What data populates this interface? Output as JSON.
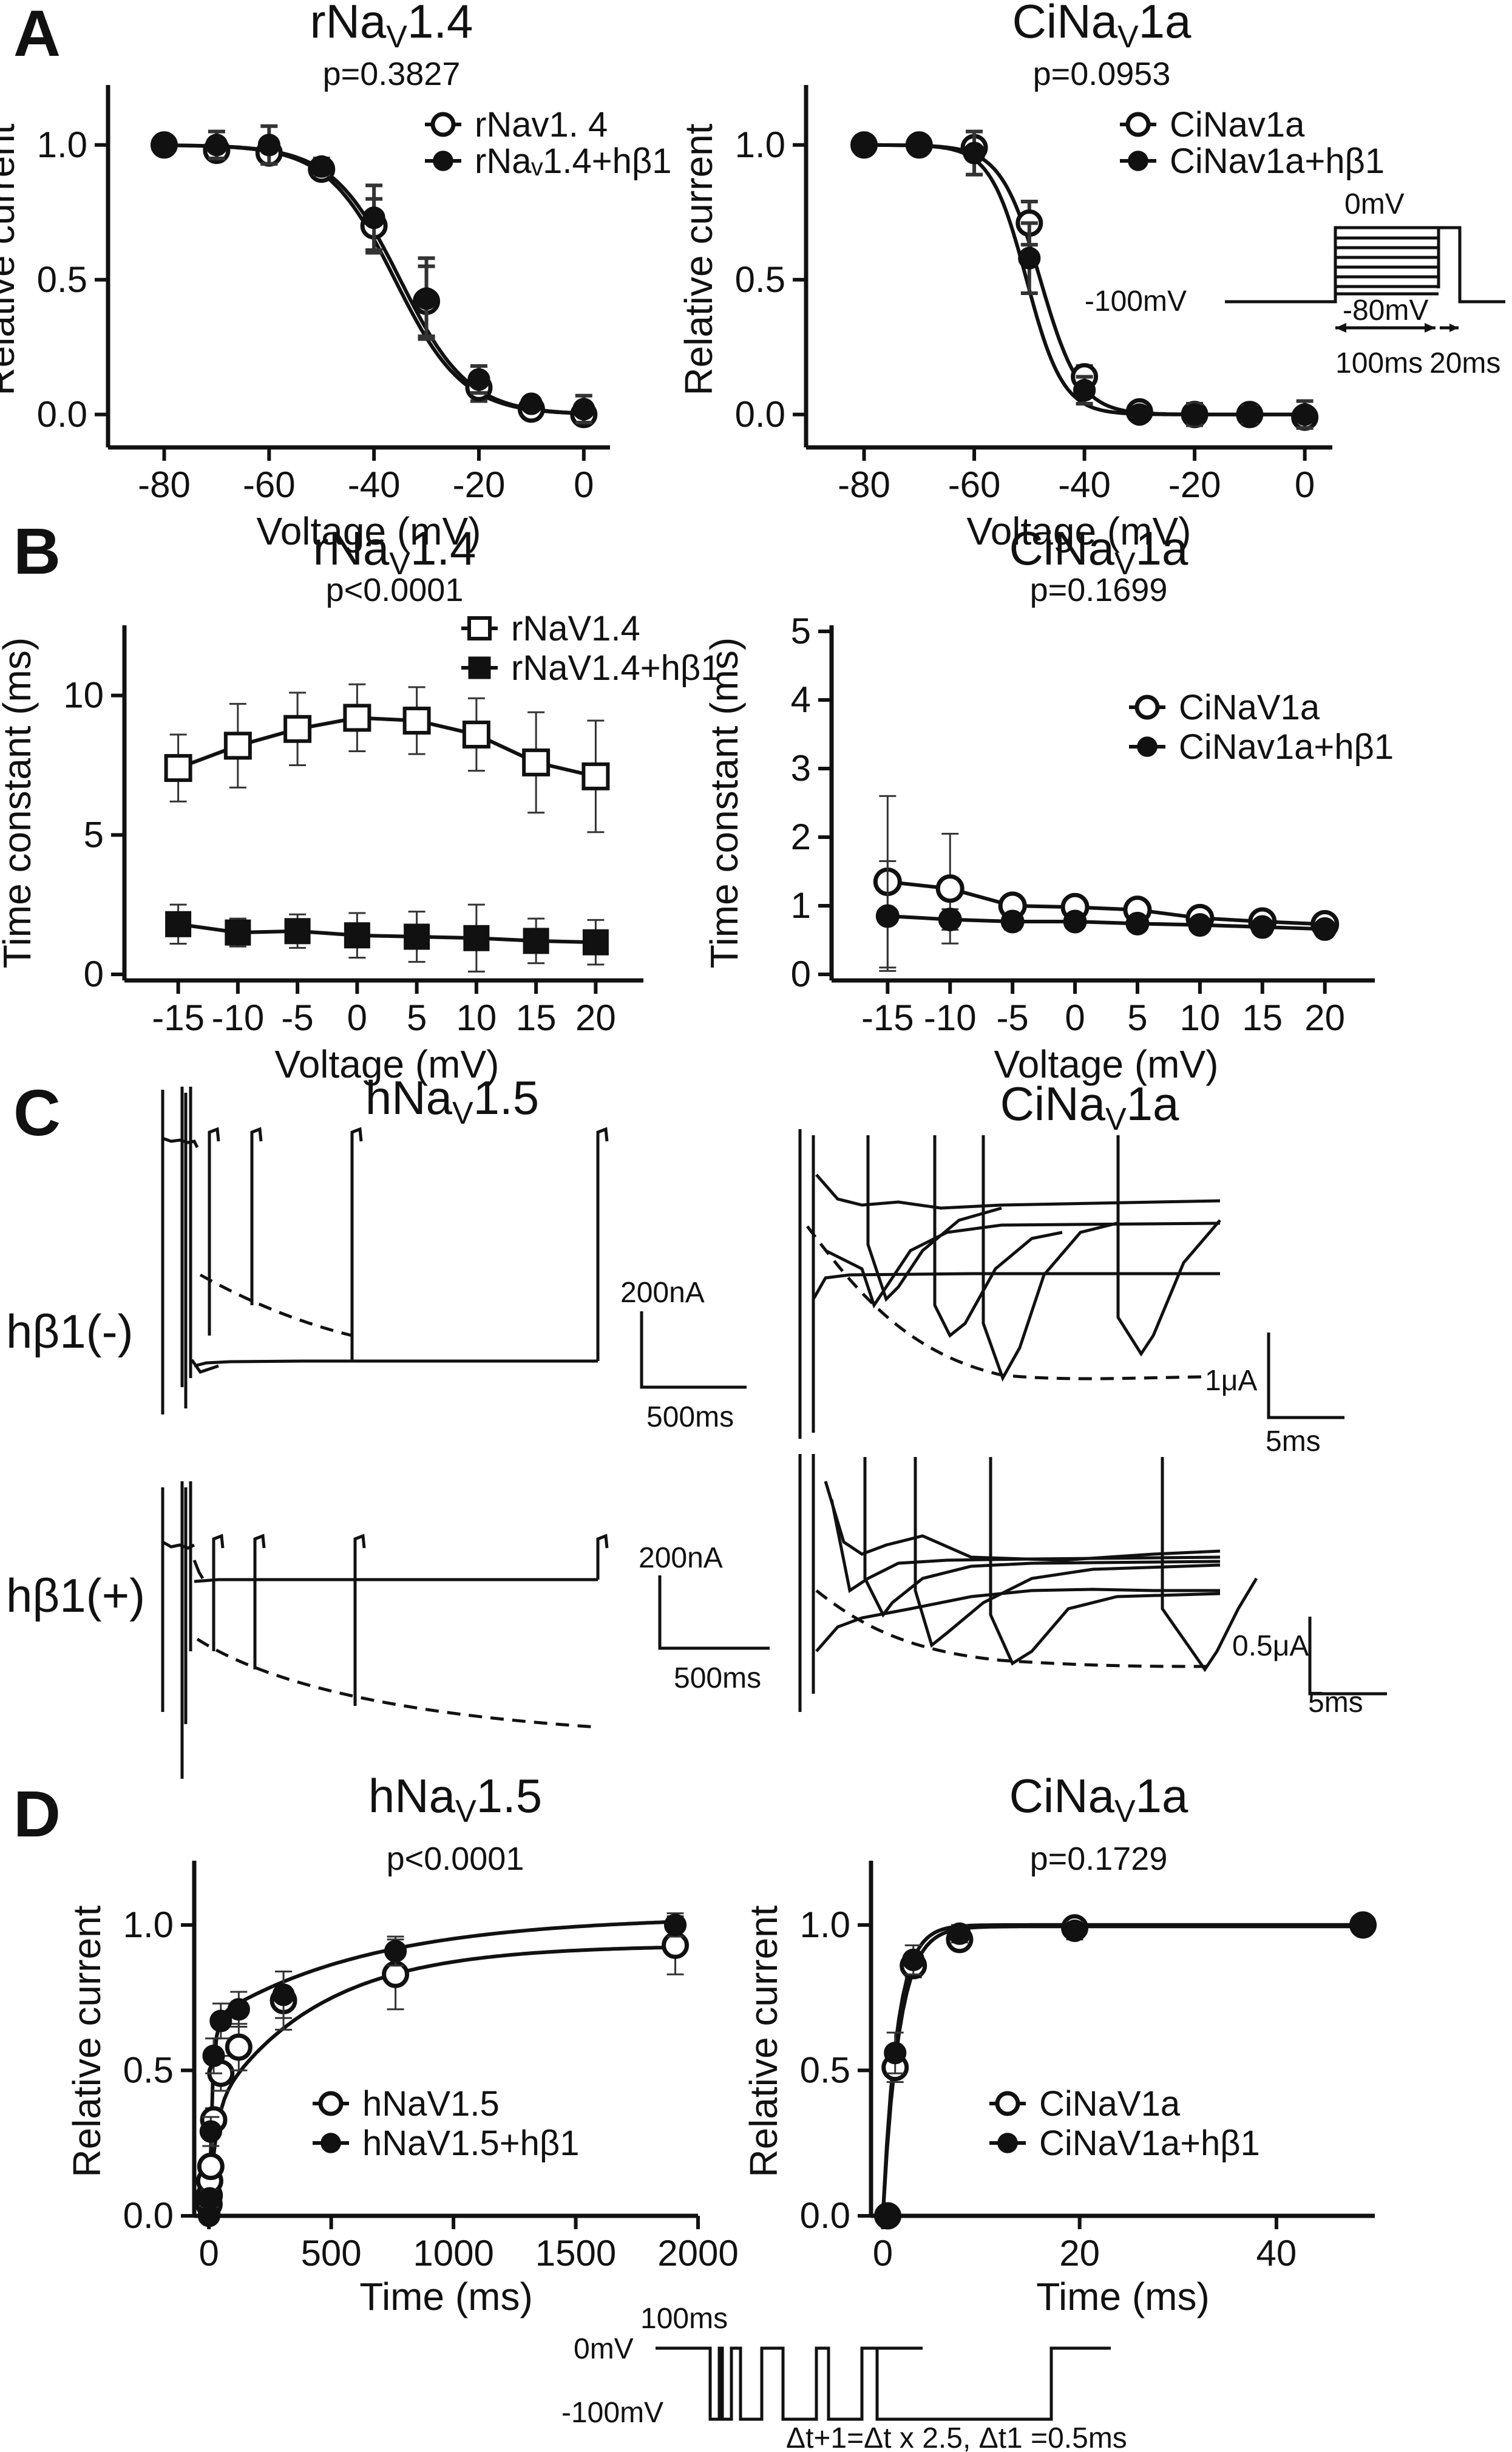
{
  "panels": {
    "A": "A",
    "B": "B",
    "C": "C",
    "D": "D"
  },
  "chart_data": [
    {
      "id": "A_left",
      "type": "line",
      "title": "rNaV1.4",
      "title_base": "rNa",
      "title_sub": "V",
      "title_rest": "1.4",
      "pvalue": "p=0.3827",
      "xlabel": "Voltage (mV)",
      "ylabel": "Relative current",
      "xlim": [
        -87,
        5
      ],
      "ylim": [
        -0.05,
        1.2
      ],
      "xticks": [
        -80,
        -60,
        -40,
        -20,
        0
      ],
      "xtick_labels": [
        "-80",
        "-60",
        "-40",
        "-20",
        "0"
      ],
      "yticks": [
        0,
        0.5,
        1
      ],
      "ytick_labels": [
        "0.0",
        "0.5",
        "1.0"
      ],
      "legend_position": "top-right",
      "series": [
        {
          "name": "rNav1. 4",
          "marker": "open-circle",
          "x": [
            -80,
            -70,
            -60,
            -50,
            -40,
            -30,
            -20,
            -10,
            0
          ],
          "y": [
            1.0,
            0.98,
            0.97,
            0.91,
            0.7,
            0.42,
            0.1,
            0.02,
            0.0
          ],
          "err": [
            0.01,
            0.03,
            0.04,
            0.03,
            0.1,
            0.13,
            0.05,
            0.02,
            0.03
          ],
          "fit_v50": -36,
          "fit_k": 6.5
        },
        {
          "name": "rNaᵥ1.4+hβ1",
          "marker": "filled-circle",
          "x": [
            -80,
            -70,
            -60,
            -50,
            -40,
            -30,
            -20,
            -10,
            0
          ],
          "y": [
            1.0,
            1.0,
            1.0,
            0.92,
            0.73,
            0.43,
            0.13,
            0.04,
            0.02
          ],
          "err": [
            0.01,
            0.05,
            0.07,
            0.03,
            0.12,
            0.15,
            0.05,
            0.02,
            0.05
          ],
          "fit_v50": -35,
          "fit_k": 6.5
        }
      ]
    },
    {
      "id": "A_right",
      "type": "line",
      "title": "CiNaV1a",
      "title_base": "CiNa",
      "title_sub": "V",
      "title_rest": "1a",
      "pvalue": "p=0.0953",
      "xlabel": "Voltage (mV)",
      "ylabel": "Relative current",
      "xlim": [
        -87,
        5
      ],
      "ylim": [
        -0.05,
        1.2
      ],
      "xticks": [
        -80,
        -60,
        -40,
        -20,
        0
      ],
      "xtick_labels": [
        "-80",
        "-60",
        "-40",
        "-20",
        "0"
      ],
      "yticks": [
        0,
        0.5,
        1
      ],
      "ytick_labels": [
        "0.0",
        "0.5",
        "1.0"
      ],
      "legend_position": "top-right",
      "series": [
        {
          "name": "CiNav1a",
          "marker": "open-circle",
          "x": [
            -80,
            -70,
            -60,
            -50,
            -40,
            -30,
            -20,
            -10,
            0
          ],
          "y": [
            1.0,
            1.0,
            0.99,
            0.71,
            0.14,
            0.01,
            0.0,
            0.0,
            -0.01
          ],
          "err": [
            0.01,
            0.01,
            0.03,
            0.08,
            0.04,
            0.01,
            0.02,
            0.02,
            0.02
          ],
          "fit_v50": -48,
          "fit_k": 3.6
        },
        {
          "name": "CiNav1a+hβ1",
          "marker": "filled-circle",
          "x": [
            -80,
            -70,
            -60,
            -50,
            -40,
            -30,
            -20,
            -10,
            0
          ],
          "y": [
            1.0,
            1.0,
            0.97,
            0.58,
            0.09,
            0.0,
            0.0,
            0.0,
            0.0
          ],
          "err": [
            0.01,
            0.01,
            0.08,
            0.13,
            0.05,
            0.01,
            0.04,
            0.03,
            0.05
          ],
          "fit_v50": -50.5,
          "fit_k": 3.3
        }
      ],
      "protocol": {
        "v_hold": "-100mV",
        "v_top": "0mV",
        "v_prepulse": "-80mV",
        "t1": "100ms",
        "t2": "20ms"
      }
    },
    {
      "id": "B_left",
      "type": "line",
      "title": "rNaV1.4",
      "title_base": "rNa",
      "title_sub": "V",
      "title_rest": "1.4",
      "pvalue": "p<0.0001",
      "xlabel": "Voltage (mV)",
      "ylabel": "Time constant (ms)",
      "xlim": [
        -19,
        24
      ],
      "ylim": [
        0,
        12.3
      ],
      "xticks": [
        -15,
        -10,
        -5,
        0,
        5,
        10,
        15,
        20
      ],
      "xtick_labels": [
        "-15",
        "-10",
        "-5",
        "0",
        "5",
        "10",
        "15",
        "20"
      ],
      "yticks": [
        0,
        5,
        10
      ],
      "ytick_labels": [
        "0",
        "5",
        "10"
      ],
      "legend_position": "top-right",
      "series": [
        {
          "name": "rNaV1.4",
          "marker": "open-square",
          "x": [
            -15,
            -10,
            -5,
            0,
            5,
            10,
            15,
            20
          ],
          "y": [
            7.4,
            8.2,
            8.8,
            9.2,
            9.1,
            8.6,
            7.6,
            7.1
          ],
          "err": [
            1.2,
            1.5,
            1.3,
            1.2,
            1.2,
            1.3,
            1.8,
            2.0
          ]
        },
        {
          "name": "rNaV1.4+hβ1",
          "marker": "filled-square",
          "x": [
            -15,
            -10,
            -5,
            0,
            5,
            10,
            15,
            20
          ],
          "y": [
            1.8,
            1.5,
            1.55,
            1.4,
            1.35,
            1.3,
            1.2,
            1.15
          ],
          "err": [
            0.7,
            0.5,
            0.6,
            0.8,
            0.9,
            1.2,
            0.8,
            0.8
          ]
        }
      ]
    },
    {
      "id": "B_right",
      "type": "line",
      "title": "CiNaV1a",
      "title_base": "CiNa",
      "title_sub": "V",
      "title_rest": "1a",
      "pvalue": "p=0.1699",
      "xlabel": "Voltage (mV)",
      "ylabel": "Time constant (ms)",
      "xlim": [
        -19,
        24
      ],
      "ylim": [
        0,
        5
      ],
      "xticks": [
        -15,
        -10,
        -5,
        0,
        5,
        10,
        15,
        20
      ],
      "xtick_labels": [
        "-15",
        "-10",
        "-5",
        "0",
        "5",
        "10",
        "15",
        "20"
      ],
      "yticks": [
        0,
        1,
        2,
        3,
        4,
        5
      ],
      "ytick_labels": [
        "0",
        "1",
        "2",
        "3",
        "4",
        "5"
      ],
      "legend_position": "top-right",
      "series": [
        {
          "name": "CiNaV1a",
          "marker": "open-circle",
          "x": [
            -15,
            -10,
            -5,
            0,
            5,
            10,
            15,
            20
          ],
          "y": [
            1.35,
            1.25,
            1.0,
            0.98,
            0.94,
            0.82,
            0.77,
            0.73
          ],
          "err": [
            1.25,
            0.8,
            0.15,
            0.15,
            0.12,
            0.12,
            0.12,
            0.12
          ]
        },
        {
          "name": "CiNav1a+hβ1",
          "marker": "filled-circle",
          "x": [
            -15,
            -10,
            -5,
            0,
            5,
            10,
            15,
            20
          ],
          "y": [
            0.85,
            0.8,
            0.77,
            0.77,
            0.74,
            0.72,
            0.69,
            0.66
          ],
          "err": [
            0.8,
            0.15,
            0.12,
            0.1,
            0.08,
            0.08,
            0.08,
            0.08
          ]
        }
      ]
    },
    {
      "id": "C_traces",
      "type": "line",
      "left_title": "hNaV1.5",
      "left_title_base": "hNa",
      "left_title_sub": "V",
      "left_title_rest": "1.5",
      "right_title": "CiNaV1a",
      "right_title_base": "CiNa",
      "right_title_sub": "V",
      "right_title_rest": "1a",
      "row_label_top": "hβ1(-)",
      "row_label_bottom": "hβ1(+)",
      "scalebars": {
        "top_left_current": "200nA",
        "top_left_time": "500ms",
        "top_right_current": "1μA",
        "top_right_time": "5ms",
        "bottom_left_current": "200nA",
        "bottom_left_time": "500ms",
        "bottom_right_current": "0.5μA",
        "bottom_right_time": "5ms"
      }
    },
    {
      "id": "D_left",
      "type": "line",
      "title": "hNaV1.5",
      "title_base": "hNa",
      "title_sub": "V",
      "title_rest": "1.5",
      "pvalue": "p<0.0001",
      "xlabel": "Time (ms)",
      "ylabel": "Relative current",
      "xlim": [
        -60,
        2000
      ],
      "ylim": [
        0,
        1.2
      ],
      "xticks": [
        0,
        500,
        1000,
        1500,
        2000
      ],
      "xtick_labels": [
        "0",
        "500",
        "1000",
        "1500",
        "2000"
      ],
      "yticks": [
        0,
        0.5,
        1
      ],
      "ytick_labels": [
        "0.0",
        "0.5",
        "1.0"
      ],
      "legend_position": "bottom-center",
      "series": [
        {
          "name": "hNaV1.5",
          "marker": "open-circle",
          "x": [
            0.5,
            1.25,
            3.1,
            7.8,
            19.5,
            48.8,
            122,
            305,
            763,
            1907
          ],
          "y": [
            0.04,
            0.07,
            0.12,
            0.17,
            0.33,
            0.49,
            0.58,
            0.74,
            0.83,
            0.93
          ],
          "err": [
            0.02,
            0.02,
            0.03,
            0.03,
            0.04,
            0.06,
            0.08,
            0.1,
            0.12,
            0.1
          ]
        },
        {
          "name": "hNaV1.5+hβ1",
          "marker": "filled-circle",
          "x": [
            0.5,
            1.25,
            3.1,
            7.8,
            19.5,
            48.8,
            122,
            305,
            763,
            1907
          ],
          "y": [
            0.0,
            0.01,
            0.06,
            0.29,
            0.55,
            0.67,
            0.71,
            0.76,
            0.91,
            1.0
          ],
          "err": [
            0.02,
            0.02,
            0.03,
            0.05,
            0.06,
            0.06,
            0.06,
            0.08,
            0.05,
            0.04
          ]
        }
      ]
    },
    {
      "id": "D_right",
      "type": "line",
      "title": "CiNaV1a",
      "title_base": "CiNa",
      "title_sub": "V",
      "title_rest": "1a",
      "pvalue": "p=0.1729",
      "xlabel": "Time (ms)",
      "ylabel": "Relative current",
      "xlim": [
        -1.2,
        50
      ],
      "ylim": [
        0,
        1.2
      ],
      "xticks": [
        0,
        20,
        40
      ],
      "xtick_labels": [
        "0",
        "20",
        "40"
      ],
      "yticks": [
        0,
        0.5,
        1
      ],
      "ytick_labels": [
        "0.0",
        "0.5",
        "1.0"
      ],
      "legend_position": "bottom-center",
      "series": [
        {
          "name": "CiNaV1a",
          "marker": "open-circle",
          "x": [
            0.5,
            1.25,
            3.1,
            7.8,
            19.5,
            48.8
          ],
          "y": [
            0.0,
            0.51,
            0.86,
            0.95,
            0.99,
            1.0
          ],
          "err": [
            0.01,
            0.05,
            0.04,
            0.03,
            0.03,
            0.03
          ]
        },
        {
          "name": "CiNaV1a+hβ1",
          "marker": "filled-circle",
          "x": [
            0.5,
            1.25,
            3.1,
            7.8,
            19.5,
            48.8
          ],
          "y": [
            0.0,
            0.56,
            0.88,
            0.97,
            0.98,
            1.0
          ],
          "err": [
            0.01,
            0.07,
            0.05,
            0.03,
            0.03,
            0.02
          ]
        }
      ],
      "protocol": {
        "top_label": "100ms",
        "v_top": "0mV",
        "v_hold": "-100mV",
        "formula": "Δt+1=Δt x 2.5, Δt1 =0.5ms"
      }
    }
  ]
}
